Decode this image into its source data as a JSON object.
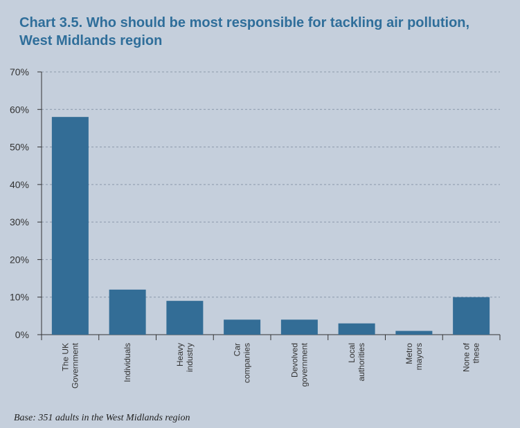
{
  "chart_data": {
    "type": "bar",
    "title": "Chart 3.5. Who should be most responsible for tackling air pollution, West Midlands region",
    "categories": [
      [
        "The UK",
        "Government"
      ],
      [
        "Individuals"
      ],
      [
        "Heavy",
        "industry"
      ],
      [
        "Car",
        "companies"
      ],
      [
        "Devolved",
        "government"
      ],
      [
        "Local",
        "authorities"
      ],
      [
        "Metro",
        "mayors"
      ],
      [
        "None of",
        "these"
      ]
    ],
    "values": [
      58,
      12,
      9,
      4,
      4,
      3,
      1,
      10
    ],
    "ylim": [
      0,
      70
    ],
    "yticks": [
      0,
      10,
      20,
      30,
      40,
      50,
      60,
      70
    ],
    "ytick_suffix": "%",
    "grid": true,
    "xlabel": "",
    "ylabel": ""
  },
  "colors": {
    "bar": "#336d96",
    "background": "#c5cfdc",
    "title": "#2f6e9a",
    "grid": "#8a98aa"
  },
  "footnote": "Base: 351 adults in the West Midlands region"
}
